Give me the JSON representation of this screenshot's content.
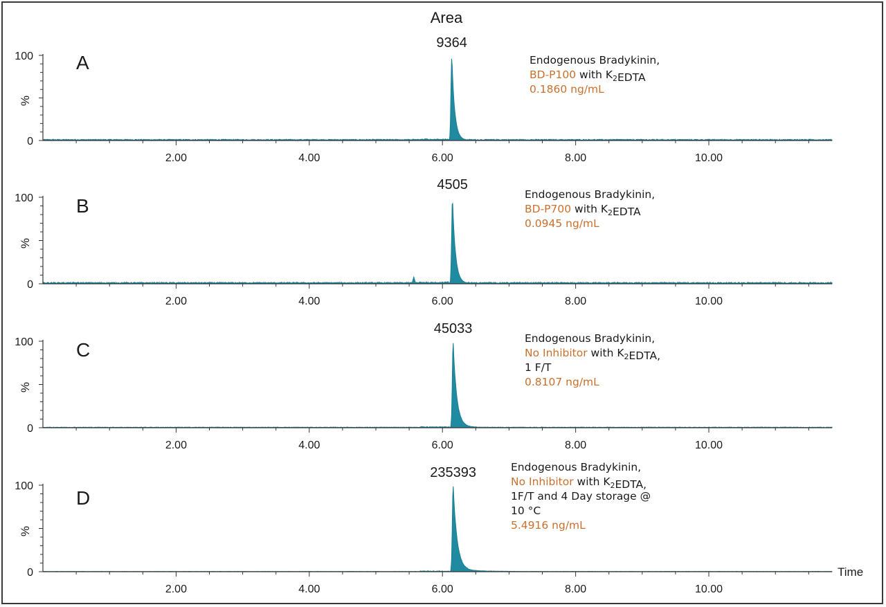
{
  "header": {
    "area_label": "Area"
  },
  "time_label": "Time",
  "chart_data": [
    {
      "panel": "A",
      "type": "area",
      "peak_area": "9364",
      "ylabel": "%",
      "ylim": [
        0,
        100
      ],
      "xlim": [
        0.0,
        11.85
      ],
      "x_ticks": [
        "2.00",
        "4.00",
        "6.00",
        "8.00",
        "10.00"
      ],
      "y_ticks": [
        "0",
        "100"
      ],
      "peak_rt": 6.14,
      "baseline_pct": 1.5,
      "tail_scale": 0.05,
      "pre_bump_pct": 1.8,
      "annotation": [
        [
          {
            "text": "Endogenous Bradykinin,",
            "color": "#1a1a1a"
          }
        ],
        [
          {
            "text": "BD-P100",
            "color": "#c8702e"
          },
          {
            "text": " with K",
            "color": "#1a1a1a"
          },
          {
            "text": "2",
            "color": "#1a1a1a",
            "sub": true
          },
          {
            "text": "EDTA",
            "color": "#1a1a1a"
          }
        ],
        [
          {
            "text": "0.1860 ng/mL",
            "color": "#c8702e"
          }
        ]
      ]
    },
    {
      "panel": "B",
      "type": "area",
      "peak_area": "4505",
      "ylabel": "%",
      "ylim": [
        0,
        100
      ],
      "xlim": [
        0.0,
        11.85
      ],
      "x_ticks": [
        "2.00",
        "4.00",
        "6.00",
        "8.00",
        "10.00"
      ],
      "y_ticks": [
        "0",
        "100"
      ],
      "peak_rt": 6.15,
      "baseline_pct": 1.8,
      "tail_scale": 0.06,
      "pre_bump_pct": 8.0,
      "annotation": [
        [
          {
            "text": "Endogenous Bradykinin,",
            "color": "#1a1a1a"
          }
        ],
        [
          {
            "text": "BD-P700",
            "color": "#c8702e"
          },
          {
            "text": " with K",
            "color": "#1a1a1a"
          },
          {
            "text": "2",
            "color": "#1a1a1a",
            "sub": true
          },
          {
            "text": "EDTA",
            "color": "#1a1a1a"
          }
        ],
        [
          {
            "text": "0.0945 ng/mL",
            "color": "#c8702e"
          }
        ]
      ]
    },
    {
      "panel": "C",
      "type": "area",
      "peak_area": "45033",
      "ylabel": "%",
      "ylim": [
        0,
        100
      ],
      "xlim": [
        0.0,
        11.85
      ],
      "x_ticks": [
        "2.00",
        "4.00",
        "6.00",
        "8.00",
        "10.00"
      ],
      "y_ticks": [
        "0",
        "100"
      ],
      "peak_rt": 6.16,
      "baseline_pct": 0.8,
      "tail_scale": 0.12,
      "pre_bump_pct": 0.8,
      "annotation": [
        [
          {
            "text": "Endogenous Bradykinin,",
            "color": "#1a1a1a"
          }
        ],
        [
          {
            "text": "No Inhibitor",
            "color": "#c8702e"
          },
          {
            "text": " with K",
            "color": "#1a1a1a"
          },
          {
            "text": "2",
            "color": "#1a1a1a",
            "sub": true
          },
          {
            "text": "EDTA,",
            "color": "#1a1a1a"
          }
        ],
        [
          {
            "text": "1 F/T",
            "color": "#1a1a1a"
          }
        ],
        [
          {
            "text": "0.8107 ng/mL",
            "color": "#c8702e"
          }
        ]
      ]
    },
    {
      "panel": "D",
      "type": "area",
      "peak_area": "235393",
      "ylabel": "%",
      "ylim": [
        0,
        100
      ],
      "xlim": [
        0.0,
        11.85
      ],
      "x_ticks": [
        "2.00",
        "4.00",
        "6.00",
        "8.00",
        "10.00"
      ],
      "y_ticks": [
        "0",
        "100"
      ],
      "peak_rt": 6.16,
      "baseline_pct": 0.4,
      "tail_scale": 0.16,
      "pre_bump_pct": 0.4,
      "annotation": [
        [
          {
            "text": "Endogenous Bradykinin,",
            "color": "#1a1a1a"
          }
        ],
        [
          {
            "text": "No Inhibitor",
            "color": "#c8702e"
          },
          {
            "text": " with K",
            "color": "#1a1a1a"
          },
          {
            "text": "2",
            "color": "#1a1a1a",
            "sub": true
          },
          {
            "text": "EDTA,",
            "color": "#1a1a1a"
          }
        ],
        [
          {
            "text": "1F/T and 4 Day storage @",
            "color": "#1a1a1a"
          }
        ],
        [
          {
            "text": "10 °C",
            "color": "#1a1a1a"
          }
        ],
        [
          {
            "text": "5.4916 ng/mL",
            "color": "#c8702e"
          }
        ]
      ]
    }
  ],
  "colors": {
    "trace": "#1a7f96",
    "trace_fill": "#1f8aa0",
    "axis": "#333333",
    "text": "#1a1a1a",
    "highlight": "#c8702e"
  }
}
